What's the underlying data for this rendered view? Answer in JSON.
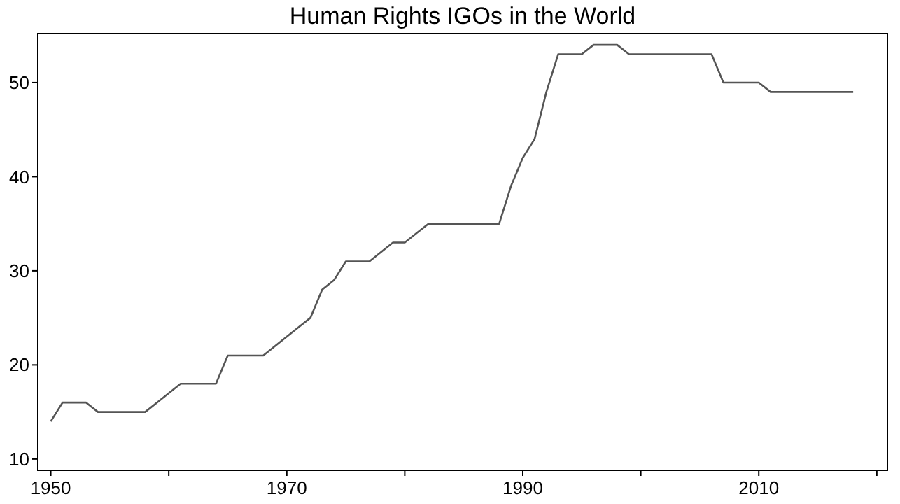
{
  "chart_data": {
    "type": "line",
    "title": "Human Rights IGOs in the World",
    "x": [
      1950,
      1951,
      1952,
      1953,
      1954,
      1955,
      1956,
      1957,
      1958,
      1959,
      1960,
      1961,
      1962,
      1963,
      1964,
      1965,
      1966,
      1967,
      1968,
      1969,
      1970,
      1971,
      1972,
      1973,
      1974,
      1975,
      1976,
      1977,
      1978,
      1979,
      1980,
      1981,
      1982,
      1983,
      1984,
      1985,
      1986,
      1987,
      1988,
      1989,
      1990,
      1991,
      1992,
      1993,
      1994,
      1995,
      1996,
      1997,
      1998,
      1999,
      2000,
      2001,
      2002,
      2003,
      2004,
      2005,
      2006,
      2007,
      2008,
      2009,
      2010,
      2011,
      2012,
      2013,
      2014,
      2015,
      2016,
      2017,
      2018
    ],
    "series": [
      {
        "color": "#555555",
        "values": [
          14,
          16,
          16,
          16,
          15,
          15,
          15,
          15,
          15,
          16,
          17,
          18,
          18,
          18,
          18,
          21,
          21,
          21,
          21,
          22,
          23,
          24,
          25,
          28,
          29,
          31,
          31,
          31,
          32,
          33,
          33,
          34,
          35,
          35,
          35,
          35,
          35,
          35,
          35,
          39,
          42,
          44,
          49,
          53,
          53,
          53,
          54,
          54,
          54,
          53,
          53,
          53,
          53,
          53,
          53,
          53,
          53,
          50,
          50,
          50,
          50,
          49,
          49,
          49,
          49,
          49,
          49,
          49,
          49
        ]
      }
    ],
    "xlim": [
      1948.9,
      2020.9
    ],
    "ylim": [
      8.8,
      55.2
    ],
    "xticks": [
      1950,
      {
        "value": 1960,
        "label": null
      },
      1970,
      {
        "value": 1980,
        "label": null
      },
      1990,
      {
        "value": 2000,
        "label": null
      },
      2010,
      {
        "value": 2020,
        "label": null
      }
    ],
    "yticks": [
      10,
      20,
      30,
      40,
      50
    ],
    "grid": false,
    "marker": "none",
    "line_style": "solid"
  }
}
